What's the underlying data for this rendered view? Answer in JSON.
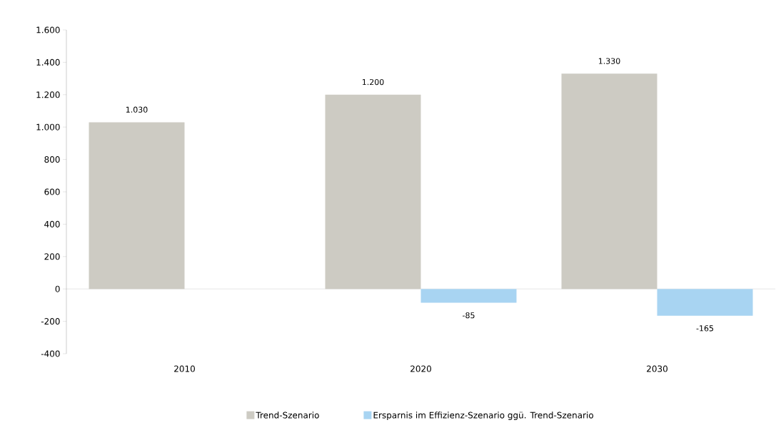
{
  "chart_data": {
    "type": "bar",
    "categories": [
      "2010",
      "2020",
      "2030"
    ],
    "series": [
      {
        "name": "Trend-Szenario",
        "color": "#cdcbc3",
        "values": [
          1030,
          1200,
          1330
        ],
        "value_labels": [
          "1.030",
          "1.200",
          "1.330"
        ]
      },
      {
        "name": "Ersparnis im Effizienz-Szenario ggü. Trend-Szenario",
        "color": "#a8d4f2",
        "values": [
          null,
          -85,
          -165
        ],
        "value_labels": [
          null,
          "-85",
          "-165"
        ]
      }
    ],
    "ylim": [
      -400,
      1600
    ],
    "yticks": [
      {
        "value": -400,
        "label": "-400"
      },
      {
        "value": -200,
        "label": "-200"
      },
      {
        "value": 0,
        "label": "0"
      },
      {
        "value": 200,
        "label": "200"
      },
      {
        "value": 400,
        "label": "400"
      },
      {
        "value": 600,
        "label": "600"
      },
      {
        "value": 800,
        "label": "800"
      },
      {
        "value": 1000,
        "label": "1.000"
      },
      {
        "value": 1200,
        "label": "1.200"
      },
      {
        "value": 1400,
        "label": "1.400"
      },
      {
        "value": 1600,
        "label": "1.600"
      }
    ],
    "legend": "bottom"
  }
}
